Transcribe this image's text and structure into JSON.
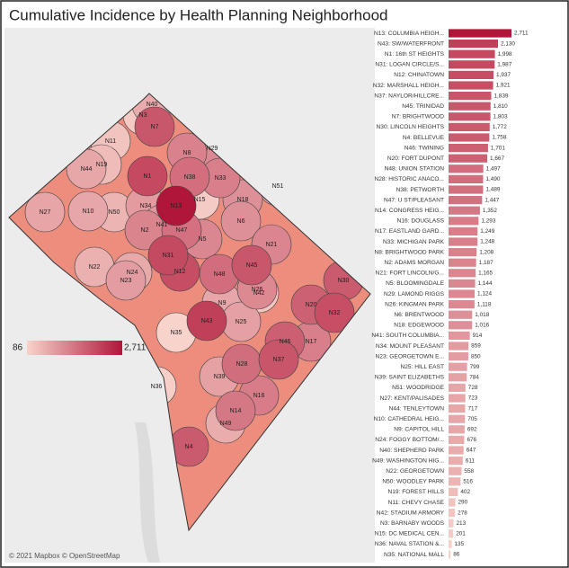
{
  "chart_data": {
    "type": "bar",
    "title": "Cumulative Incidence by Health Planning Neighborhood",
    "attribution": "© 2021 Mapbox © OpenStreetMap",
    "categories": [
      "N13: COLUMBIA HEIGH...",
      "N43: SW/WATERFRONT",
      "N1: 16th ST HEIGHTS",
      "N31: LOGAN CIRCLE/S...",
      "N12: CHINATOWN",
      "N32: MARSHALL HEIGH...",
      "N37: NAYLOR/HILLCRE...",
      "N45: TRINIDAD",
      "N7: BRIGHTWOOD",
      "N30: LINCOLN HEIGHTS",
      "N4: BELLEVUE",
      "N46: TWINING",
      "N20: FORT DUPONT",
      "N48: UNION STATION",
      "N28: HISTORIC ANACO...",
      "N38: PETWORTH",
      "N47: U ST/PLEASANT",
      "N14: CONGRESS HEIG...",
      "N16: DOUGLASS",
      "N17: EASTLAND GARD...",
      "N33: MICHIGAN PARK",
      "N8: BRIGHTWOOD PARK",
      "N2: ADAMS MORGAN",
      "N21: FORT LINCOLN/G...",
      "N5: BLOOMINGDALE",
      "N29: LAMOND RIGGS",
      "N26: KINGMAN PARK",
      "N6: BRENTWOOD",
      "N18: EDGEWOOD",
      "N41: SOUTH COLUMBIA...",
      "N34: MOUNT PLEASANT",
      "N23: GEORGETOWN E...",
      "N25: HILL EAST",
      "N39: SAINT ELIZABETHS",
      "N51: WOODRIDGE",
      "N27: KENT/PALISADES",
      "N44: TENLEYTOWN",
      "N10: CATHEDRAL HEIG...",
      "N9: CAPITOL HILL",
      "N24: FOGGY BOTTOM/...",
      "N40: SHEPHERD PARK",
      "N49: WASHINGTON HIG...",
      "N22: GEORGETOWN",
      "N50: WOODLEY PARK",
      "N19: FOREST HILLS",
      "N11: CHEVY CHASE",
      "N42: STADIUM ARMORY",
      "N3: BARNABY WOODS",
      "N15: DC MEDICAL CEN...",
      "N36: NAVAL STATION &...",
      "N35: NATIONAL MALL"
    ],
    "values": [
      2711,
      2130,
      1998,
      1987,
      1937,
      1921,
      1839,
      1810,
      1803,
      1772,
      1758,
      1701,
      1667,
      1497,
      1490,
      1489,
      1447,
      1352,
      1293,
      1249,
      1248,
      1208,
      1187,
      1165,
      1144,
      1124,
      1118,
      1018,
      1016,
      914,
      859,
      850,
      799,
      784,
      728,
      723,
      717,
      705,
      692,
      676,
      647,
      611,
      558,
      516,
      402,
      290,
      278,
      213,
      201,
      135,
      86
    ],
    "value_labels": [
      "2,711",
      "2,130",
      "1,998",
      "1,987",
      "1,937",
      "1,921",
      "1,839",
      "1,810",
      "1,803",
      "1,772",
      "1,758",
      "1,701",
      "1,667",
      "1,497",
      "1,490",
      "1,489",
      "1,447",
      "1,352",
      "1,293",
      "1,249",
      "1,248",
      "1,208",
      "1,187",
      "1,165",
      "1,144",
      "1,124",
      "1,118",
      "1,018",
      "1,016",
      "914",
      "859",
      "850",
      "799",
      "784",
      "728",
      "723",
      "717",
      "705",
      "692",
      "676",
      "647",
      "611",
      "558",
      "516",
      "402",
      "290",
      "278",
      "213",
      "201",
      "135",
      "86"
    ],
    "map_labels": [
      "N13",
      "N43",
      "N1",
      "N31",
      "N12",
      "N32",
      "N37",
      "N45",
      "N7",
      "N30",
      "N4",
      "N46",
      "N20",
      "N48",
      "N28",
      "N38",
      "N47",
      "N14",
      "N16",
      "N17",
      "N33",
      "N8",
      "N2",
      "N21",
      "N5",
      "N29",
      "N26",
      "N6",
      "N18",
      "N41",
      "N34",
      "N23",
      "N25",
      "N39",
      "N51",
      "N27",
      "N44",
      "N10",
      "N9",
      "N24",
      "N40",
      "N49",
      "N22",
      "N50",
      "N19",
      "N11",
      "N42",
      "N3",
      "N15",
      "N36",
      "N35"
    ],
    "legend": {
      "min": 86,
      "max": {
        "value": 2711,
        "label": "2,711"
      },
      "colors": [
        "#f8d3cb",
        "#b0163a"
      ]
    }
  }
}
